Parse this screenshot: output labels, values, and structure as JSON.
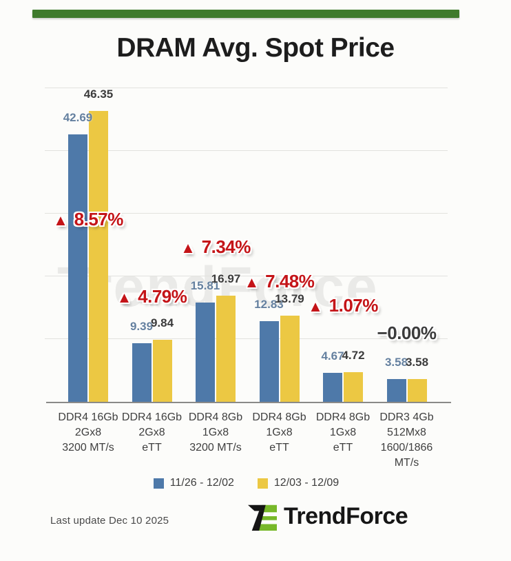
{
  "title": "DRAM Avg. Spot Price",
  "watermark": "TrendForce",
  "chart_data": {
    "type": "bar",
    "categories": [
      [
        "DDR4 16Gb",
        "2Gx8",
        "3200 MT/s"
      ],
      [
        "DDR4 16Gb",
        "2Gx8",
        "eTT"
      ],
      [
        "DDR4 8Gb",
        "1Gx8",
        "3200 MT/s"
      ],
      [
        "DDR4 8Gb",
        "1Gx8",
        "eTT"
      ],
      [
        "DDR4 8Gb",
        "1Gx8",
        "eTT"
      ],
      [
        "DDR3 4Gb",
        "512Mx8",
        "1600/1866",
        "MT/s"
      ]
    ],
    "series": [
      {
        "name": "11/26 - 12/02",
        "color": "#4e79a9",
        "label_color": "#64809f",
        "values": [
          42.69,
          9.39,
          15.81,
          12.83,
          4.67,
          3.58
        ]
      },
      {
        "name": "12/03 - 12/09",
        "color": "#ecc843",
        "label_color": "#3b3b3b",
        "values": [
          46.35,
          9.84,
          16.97,
          13.79,
          4.72,
          3.58
        ]
      }
    ],
    "change_labels": [
      {
        "text": "8.57%",
        "direction": "up"
      },
      {
        "text": "4.79%",
        "direction": "up"
      },
      {
        "text": "7.34%",
        "direction": "up"
      },
      {
        "text": "7.48%",
        "direction": "up"
      },
      {
        "text": "1.07%",
        "direction": "up"
      },
      {
        "text": "0.00%",
        "direction": "flat"
      }
    ],
    "ylim": [
      0,
      50
    ],
    "grid_step": 10,
    "grid": true,
    "y_axis_labels_visible": false,
    "legend_position": "bottom",
    "layout": {
      "pct_label_tops": [
        175,
        287,
        215,
        265,
        300,
        340
      ]
    }
  },
  "glyphs": {
    "up_triangle": "▲",
    "minus": "−"
  },
  "accent_colors": {
    "top_bar_green": "#3f7a2c",
    "change_up_red": "#c41418",
    "logo_green": "#77b829"
  },
  "footer": {
    "last_update": "Last update Dec 10 2025",
    "brand": "TrendForce"
  }
}
